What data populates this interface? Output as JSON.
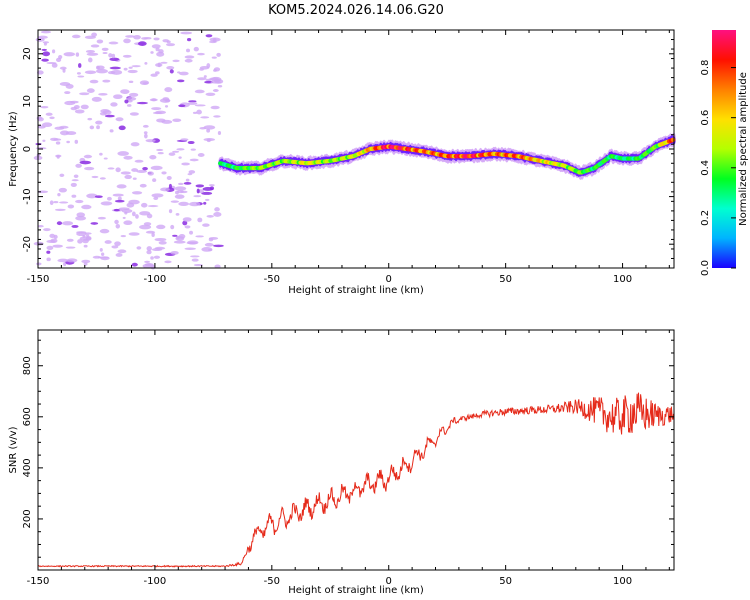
{
  "title": "KOM5.2024.026.14.06.G20",
  "chart_data": [
    {
      "type": "heatmap",
      "xlabel": "Height of straight line (km)",
      "ylabel": "Frequency (Hz)",
      "xlim": [
        -150,
        122
      ],
      "ylim": [
        -25,
        25
      ],
      "x_ticks": [
        -150,
        -100,
        -50,
        0,
        50,
        100
      ],
      "y_ticks": [
        -20,
        -10,
        0,
        10,
        20
      ],
      "colorbar": {
        "label": "Normalized spectral amplitude",
        "range": [
          0,
          0.95
        ],
        "ticks": [
          0.0,
          0.2,
          0.4,
          0.6,
          0.8
        ],
        "colormap": [
          "#1a00ff",
          "#00b4ff",
          "#00ffd0",
          "#00ff20",
          "#b4ff00",
          "#ffe000",
          "#ff8000",
          "#ff1000",
          "#ff1080"
        ]
      },
      "ridge": {
        "x": [
          -72,
          -65,
          -55,
          -45,
          -35,
          -25,
          -15,
          -8,
          0,
          8,
          15,
          25,
          35,
          45,
          55,
          65,
          75,
          82,
          88,
          95,
          100,
          107,
          114,
          122
        ],
        "frequency": [
          -3.0,
          -4.0,
          -4.0,
          -2.5,
          -3.0,
          -2.5,
          -1.5,
          0.0,
          0.5,
          0.0,
          -0.5,
          -1.5,
          -1.5,
          -1.0,
          -1.5,
          -2.5,
          -3.5,
          -5.0,
          -4.0,
          -1.5,
          -2.0,
          -2.0,
          0.5,
          2.0
        ],
        "amplitude": [
          0.3,
          0.35,
          0.45,
          0.45,
          0.55,
          0.45,
          0.5,
          0.65,
          0.9,
          0.8,
          0.7,
          0.75,
          0.85,
          0.7,
          0.75,
          0.6,
          0.5,
          0.4,
          0.35,
          0.35,
          0.3,
          0.35,
          0.4,
          0.8
        ]
      },
      "noise_region": {
        "x_range": [
          -150,
          -72
        ],
        "amplitude_range": [
          0.05,
          0.2
        ]
      }
    },
    {
      "type": "line",
      "xlabel": "Height of straight line (km)",
      "ylabel": "SNR (v/v)",
      "xlim": [
        -150,
        122
      ],
      "ylim": [
        0,
        940
      ],
      "x_ticks": [
        -150,
        -100,
        -50,
        0,
        50,
        100
      ],
      "y_ticks": [
        200,
        400,
        600,
        800
      ],
      "line_color": "#e52a1a",
      "series": [
        {
          "x": [
            -150,
            -120,
            -90,
            -70,
            -63,
            -58,
            -50,
            -40,
            -30,
            -20,
            -10,
            0,
            10,
            20,
            25,
            30,
            40,
            50,
            60,
            70,
            80,
            90,
            95,
            100,
            105,
            110,
            115,
            122
          ],
          "y": [
            15,
            15,
            15,
            15,
            25,
            130,
            180,
            220,
            260,
            290,
            330,
            360,
            430,
            510,
            560,
            590,
            610,
            620,
            625,
            630,
            640,
            620,
            600,
            600,
            620,
            610,
            605,
            610
          ],
          "noise_amplitude": [
            3,
            4,
            4,
            4,
            10,
            35,
            40,
            40,
            40,
            40,
            40,
            40,
            35,
            30,
            20,
            15,
            20,
            25,
            25,
            30,
            45,
            100,
            120,
            130,
            150,
            120,
            80,
            60
          ]
        }
      ]
    }
  ]
}
